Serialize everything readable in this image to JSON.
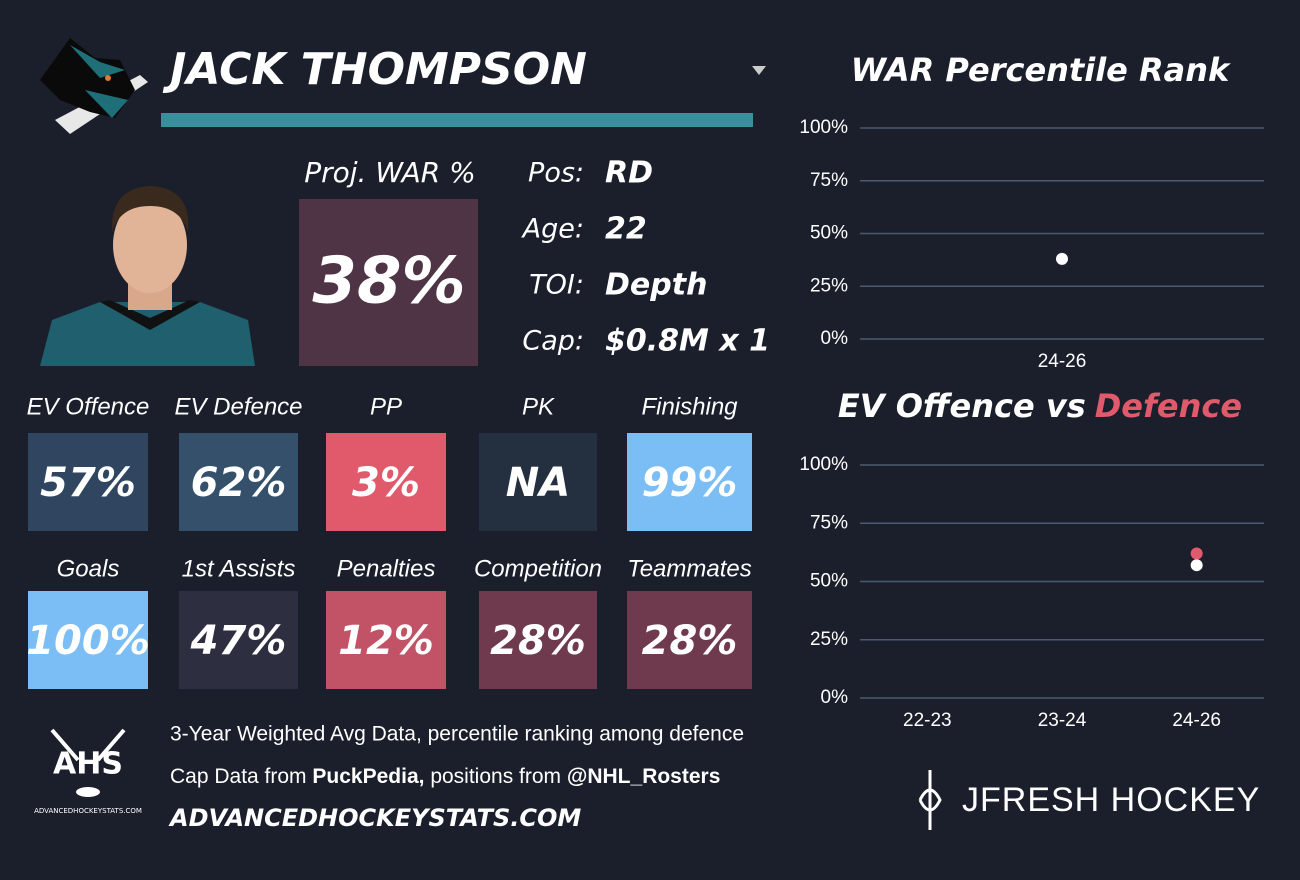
{
  "header": {
    "name": "JACK THOMPSON"
  },
  "projection": {
    "label": "Proj. WAR %",
    "value": "38%",
    "color": "#4e3445"
  },
  "info": [
    {
      "label": "Pos:",
      "value": "RD"
    },
    {
      "label": "Age:",
      "value": "22"
    },
    {
      "label": "TOI:",
      "value": "Depth"
    },
    {
      "label": "Cap:",
      "value": "$0.8M x 1"
    }
  ],
  "stats": [
    {
      "label": "EV Offence",
      "value": "57%",
      "color": "#2f4560"
    },
    {
      "label": "EV Defence",
      "value": "62%",
      "color": "#34506a"
    },
    {
      "label": "PP",
      "value": "3%",
      "color": "#e05a6c"
    },
    {
      "label": "PK",
      "value": "NA",
      "color": "#24303f"
    },
    {
      "label": "Finishing",
      "value": "99%",
      "color": "#7bbdf5"
    },
    {
      "label": "Goals",
      "value": "100%",
      "color": "#7bbdf5"
    },
    {
      "label": "1st Assists",
      "value": "47%",
      "color": "#2d2e40"
    },
    {
      "label": "Penalties",
      "value": "12%",
      "color": "#c25266"
    },
    {
      "label": "Competition",
      "value": "28%",
      "color": "#6f3a4d"
    },
    {
      "label": "Teammates",
      "value": "28%",
      "color": "#6f3a4d"
    }
  ],
  "footer": {
    "note": "3-Year Weighted Avg Data, percentile ranking among defence",
    "sources": [
      "Cap Data from",
      "PuckPedia,",
      "positions from",
      "@NHL_Rosters"
    ],
    "site": "ADVANCEDHOCKEYSTATS.COM",
    "logo": "AHS",
    "logo_caption": "ADVANCEDHOCKEYSTATS.COM",
    "brand": "JFRESH HOCKEY"
  },
  "chart_data": [
    {
      "type": "scatter",
      "title": "WAR Percentile Rank",
      "categories": [
        "24-26"
      ],
      "series": [
        {
          "color": "#ffffff",
          "values": [
            38
          ]
        }
      ],
      "ylim": [
        0,
        100
      ],
      "yticks": [
        {
          "value": 0,
          "label": "0%"
        },
        {
          "value": 25,
          "label": "25%"
        },
        {
          "value": 50,
          "label": "50%"
        },
        {
          "value": 75,
          "label": "75%"
        },
        {
          "value": 100,
          "label": "100%"
        }
      ],
      "grid": true
    },
    {
      "type": "scatter",
      "title_parts": [
        "EV Offence vs",
        "Defence"
      ],
      "categories": [
        "22-23",
        "23-24",
        "24-26"
      ],
      "series": [
        {
          "color": "#ffffff",
          "values": [
            null,
            null,
            57
          ]
        },
        {
          "color": "#e05a6c",
          "values": [
            null,
            null,
            62
          ]
        }
      ],
      "ylim": [
        0,
        100
      ],
      "yticks": [
        {
          "value": 0,
          "label": "0%"
        },
        {
          "value": 25,
          "label": "25%"
        },
        {
          "value": 50,
          "label": "50%"
        },
        {
          "value": 75,
          "label": "75%"
        },
        {
          "value": 100,
          "label": "100%"
        }
      ],
      "grid": true
    }
  ]
}
